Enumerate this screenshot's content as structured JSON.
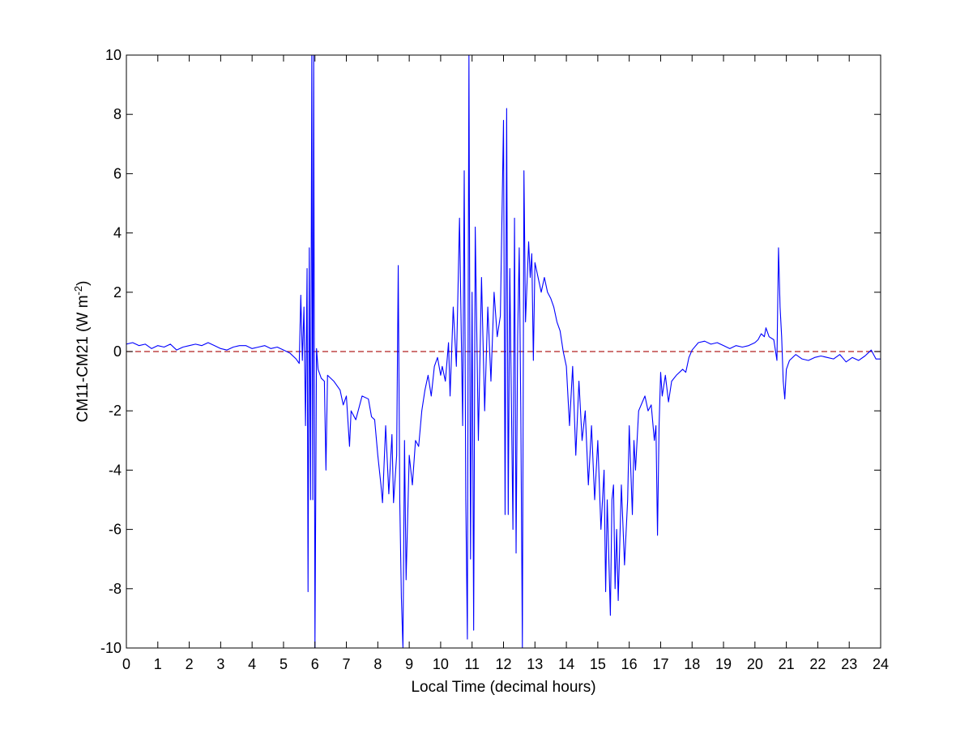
{
  "chart_data": {
    "type": "line",
    "title": "",
    "xlabel": "Local Time (decimal hours)",
    "ylabel": {
      "text": "CM11-CM21 (W m",
      "superscript": "-2",
      "suffix": ")"
    },
    "xlim": [
      0,
      24
    ],
    "ylim": [
      -10,
      10
    ],
    "x_ticks": [
      0,
      1,
      2,
      3,
      4,
      5,
      6,
      7,
      8,
      9,
      10,
      11,
      12,
      13,
      14,
      15,
      16,
      17,
      18,
      19,
      20,
      21,
      22,
      23,
      24
    ],
    "y_ticks": [
      -10,
      -8,
      -6,
      -4,
      -2,
      0,
      2,
      4,
      6,
      8,
      10
    ],
    "grid": false,
    "legend": "none",
    "series": [
      {
        "color": "#0000ff",
        "points": [
          [
            0.0,
            0.25
          ],
          [
            0.2,
            0.3
          ],
          [
            0.4,
            0.2
          ],
          [
            0.6,
            0.25
          ],
          [
            0.8,
            0.1
          ],
          [
            1.0,
            0.2
          ],
          [
            1.2,
            0.15
          ],
          [
            1.4,
            0.25
          ],
          [
            1.6,
            0.05
          ],
          [
            1.8,
            0.15
          ],
          [
            2.0,
            0.2
          ],
          [
            2.2,
            0.25
          ],
          [
            2.4,
            0.2
          ],
          [
            2.6,
            0.3
          ],
          [
            2.8,
            0.2
          ],
          [
            3.0,
            0.1
          ],
          [
            3.2,
            0.05
          ],
          [
            3.4,
            0.15
          ],
          [
            3.6,
            0.2
          ],
          [
            3.8,
            0.2
          ],
          [
            4.0,
            0.1
          ],
          [
            4.2,
            0.15
          ],
          [
            4.4,
            0.2
          ],
          [
            4.6,
            0.1
          ],
          [
            4.8,
            0.15
          ],
          [
            5.0,
            0.05
          ],
          [
            5.2,
            -0.05
          ],
          [
            5.4,
            -0.25
          ],
          [
            5.5,
            -0.4
          ],
          [
            5.55,
            1.9
          ],
          [
            5.6,
            -0.3
          ],
          [
            5.65,
            1.5
          ],
          [
            5.7,
            -2.5
          ],
          [
            5.75,
            2.8
          ],
          [
            5.78,
            -8.1
          ],
          [
            5.82,
            3.5
          ],
          [
            5.86,
            -5.0
          ],
          [
            5.9,
            10.0
          ],
          [
            5.93,
            -5.0
          ],
          [
            5.96,
            10.0
          ],
          [
            6.0,
            -10.0
          ],
          [
            6.05,
            0.1
          ],
          [
            6.1,
            -0.6
          ],
          [
            6.2,
            -0.9
          ],
          [
            6.3,
            -1.0
          ],
          [
            6.35,
            -4.0
          ],
          [
            6.4,
            -0.8
          ],
          [
            6.6,
            -1.0
          ],
          [
            6.8,
            -1.3
          ],
          [
            6.9,
            -1.8
          ],
          [
            7.0,
            -1.5
          ],
          [
            7.1,
            -3.2
          ],
          [
            7.15,
            -2.0
          ],
          [
            7.3,
            -2.3
          ],
          [
            7.5,
            -1.5
          ],
          [
            7.7,
            -1.6
          ],
          [
            7.8,
            -2.2
          ],
          [
            7.9,
            -2.3
          ],
          [
            8.0,
            -3.5
          ],
          [
            8.1,
            -4.5
          ],
          [
            8.15,
            -5.1
          ],
          [
            8.25,
            -2.5
          ],
          [
            8.35,
            -4.8
          ],
          [
            8.45,
            -2.8
          ],
          [
            8.5,
            -5.1
          ],
          [
            8.6,
            -3.5
          ],
          [
            8.65,
            2.9
          ],
          [
            8.7,
            -5.1
          ],
          [
            8.75,
            -8.3
          ],
          [
            8.8,
            -10.0
          ],
          [
            8.85,
            -3.0
          ],
          [
            8.9,
            -7.7
          ],
          [
            9.0,
            -3.5
          ],
          [
            9.1,
            -4.5
          ],
          [
            9.2,
            -3.0
          ],
          [
            9.3,
            -3.2
          ],
          [
            9.4,
            -2.0
          ],
          [
            9.5,
            -1.3
          ],
          [
            9.6,
            -0.8
          ],
          [
            9.7,
            -1.5
          ],
          [
            9.8,
            -0.5
          ],
          [
            9.9,
            -0.2
          ],
          [
            10.0,
            -0.8
          ],
          [
            10.05,
            -0.5
          ],
          [
            10.15,
            -1.0
          ],
          [
            10.25,
            0.3
          ],
          [
            10.3,
            -1.5
          ],
          [
            10.4,
            1.5
          ],
          [
            10.5,
            -0.5
          ],
          [
            10.6,
            4.5
          ],
          [
            10.7,
            -2.5
          ],
          [
            10.75,
            6.1
          ],
          [
            10.8,
            -5.0
          ],
          [
            10.85,
            -9.7
          ],
          [
            10.88,
            3.0
          ],
          [
            10.9,
            10.0
          ],
          [
            10.95,
            -7.0
          ],
          [
            11.0,
            2.0
          ],
          [
            11.05,
            -9.4
          ],
          [
            11.1,
            4.2
          ],
          [
            11.2,
            -3.0
          ],
          [
            11.3,
            2.5
          ],
          [
            11.4,
            -2.0
          ],
          [
            11.5,
            1.5
          ],
          [
            11.6,
            -1.0
          ],
          [
            11.7,
            2.0
          ],
          [
            11.8,
            0.5
          ],
          [
            11.9,
            1.2
          ],
          [
            12.0,
            7.8
          ],
          [
            12.05,
            -5.5
          ],
          [
            12.1,
            8.2
          ],
          [
            12.15,
            -5.5
          ],
          [
            12.2,
            2.8
          ],
          [
            12.3,
            -6.0
          ],
          [
            12.35,
            4.5
          ],
          [
            12.4,
            -6.8
          ],
          [
            12.45,
            0.5
          ],
          [
            12.5,
            3.5
          ],
          [
            12.55,
            -2.0
          ],
          [
            12.6,
            -10.0
          ],
          [
            12.65,
            6.1
          ],
          [
            12.7,
            1.0
          ],
          [
            12.8,
            3.7
          ],
          [
            12.85,
            2.5
          ],
          [
            12.9,
            3.3
          ],
          [
            12.95,
            -0.3
          ],
          [
            13.0,
            3.0
          ],
          [
            13.1,
            2.5
          ],
          [
            13.2,
            2.0
          ],
          [
            13.3,
            2.5
          ],
          [
            13.4,
            2.0
          ],
          [
            13.5,
            1.8
          ],
          [
            13.6,
            1.5
          ],
          [
            13.7,
            1.0
          ],
          [
            13.8,
            0.7
          ],
          [
            13.9,
            0.0
          ],
          [
            14.0,
            -0.5
          ],
          [
            14.1,
            -2.5
          ],
          [
            14.2,
            -0.5
          ],
          [
            14.3,
            -3.5
          ],
          [
            14.4,
            -1.0
          ],
          [
            14.5,
            -3.0
          ],
          [
            14.6,
            -2.0
          ],
          [
            14.7,
            -4.5
          ],
          [
            14.8,
            -2.5
          ],
          [
            14.9,
            -5.0
          ],
          [
            15.0,
            -3.0
          ],
          [
            15.1,
            -6.0
          ],
          [
            15.2,
            -4.0
          ],
          [
            15.25,
            -8.1
          ],
          [
            15.3,
            -5.0
          ],
          [
            15.4,
            -8.9
          ],
          [
            15.45,
            -5.0
          ],
          [
            15.5,
            -4.5
          ],
          [
            15.55,
            -8.0
          ],
          [
            15.6,
            -6.0
          ],
          [
            15.65,
            -8.4
          ],
          [
            15.75,
            -4.5
          ],
          [
            15.85,
            -7.2
          ],
          [
            15.95,
            -5.0
          ],
          [
            16.0,
            -2.5
          ],
          [
            16.1,
            -5.5
          ],
          [
            16.15,
            -3.0
          ],
          [
            16.2,
            -4.0
          ],
          [
            16.3,
            -2.0
          ],
          [
            16.5,
            -1.5
          ],
          [
            16.6,
            -2.0
          ],
          [
            16.7,
            -1.8
          ],
          [
            16.8,
            -3.0
          ],
          [
            16.85,
            -2.5
          ],
          [
            16.9,
            -6.2
          ],
          [
            16.95,
            -2.5
          ],
          [
            17.0,
            -0.7
          ],
          [
            17.05,
            -1.5
          ],
          [
            17.15,
            -0.8
          ],
          [
            17.25,
            -1.7
          ],
          [
            17.35,
            -1.0
          ],
          [
            17.5,
            -0.8
          ],
          [
            17.7,
            -0.6
          ],
          [
            17.8,
            -0.7
          ],
          [
            17.9,
            -0.2
          ],
          [
            18.0,
            0.05
          ],
          [
            18.2,
            0.3
          ],
          [
            18.4,
            0.35
          ],
          [
            18.6,
            0.25
          ],
          [
            18.8,
            0.3
          ],
          [
            19.0,
            0.2
          ],
          [
            19.2,
            0.1
          ],
          [
            19.4,
            0.2
          ],
          [
            19.6,
            0.15
          ],
          [
            19.8,
            0.2
          ],
          [
            20.0,
            0.3
          ],
          [
            20.1,
            0.4
          ],
          [
            20.2,
            0.6
          ],
          [
            20.3,
            0.5
          ],
          [
            20.35,
            0.8
          ],
          [
            20.45,
            0.5
          ],
          [
            20.6,
            0.4
          ],
          [
            20.7,
            -0.3
          ],
          [
            20.75,
            3.5
          ],
          [
            20.8,
            1.5
          ],
          [
            20.85,
            0.5
          ],
          [
            20.9,
            -1.0
          ],
          [
            20.95,
            -1.6
          ],
          [
            21.0,
            -0.6
          ],
          [
            21.1,
            -0.3
          ],
          [
            21.3,
            -0.1
          ],
          [
            21.5,
            -0.25
          ],
          [
            21.7,
            -0.3
          ],
          [
            21.9,
            -0.2
          ],
          [
            22.1,
            -0.15
          ],
          [
            22.3,
            -0.2
          ],
          [
            22.5,
            -0.25
          ],
          [
            22.7,
            -0.1
          ],
          [
            22.9,
            -0.35
          ],
          [
            23.1,
            -0.2
          ],
          [
            23.3,
            -0.3
          ],
          [
            23.5,
            -0.15
          ],
          [
            23.7,
            0.05
          ],
          [
            23.85,
            -0.25
          ],
          [
            24.0,
            -0.25
          ]
        ]
      }
    ],
    "reference_line": {
      "y": 0,
      "style": "dashed",
      "color": "#b22222"
    }
  }
}
